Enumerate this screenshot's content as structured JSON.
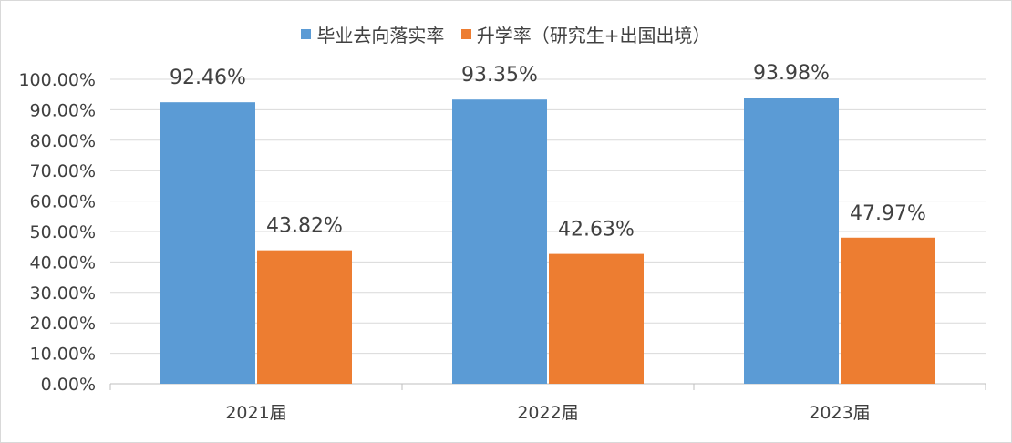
{
  "chart_data": {
    "type": "bar",
    "categories": [
      "2021届",
      "2022届",
      "2023届"
    ],
    "series": [
      {
        "name": "毕业去向落实率",
        "values": [
          92.46,
          93.35,
          93.98
        ],
        "color": "#5b9bd5",
        "labels": [
          "92.46%",
          "93.35%",
          "93.98%"
        ]
      },
      {
        "name": "升学率（研究生+出国出境）",
        "values": [
          43.82,
          42.63,
          47.97
        ],
        "color": "#ed7d31",
        "labels": [
          "43.82%",
          "42.63%",
          "47.97%"
        ]
      }
    ],
    "ylim": [
      0,
      100
    ],
    "yticks": [
      "0.00%",
      "10.00%",
      "20.00%",
      "30.00%",
      "40.00%",
      "50.00%",
      "60.00%",
      "70.00%",
      "80.00%",
      "90.00%",
      "100.00%"
    ],
    "grid": true,
    "legend_position": "top"
  }
}
